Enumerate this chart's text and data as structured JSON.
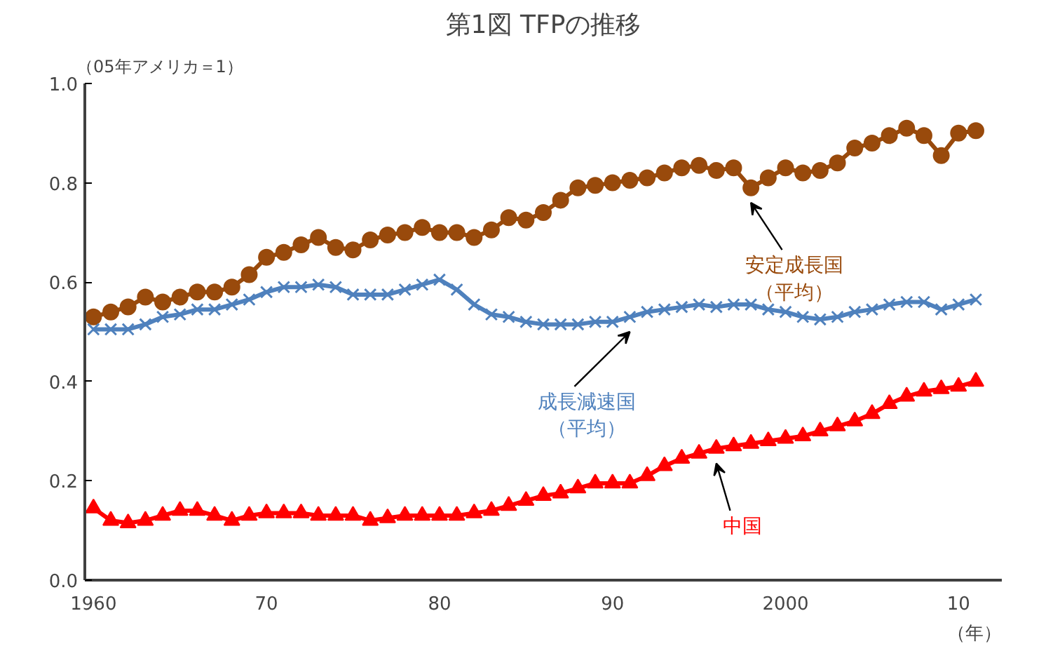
{
  "chart_data": {
    "type": "line",
    "title": "第1図 TFPの推移",
    "ylabel": "（05年アメリカ＝1）",
    "xlabel": "（年）",
    "x": [
      1960,
      1961,
      1962,
      1963,
      1964,
      1965,
      1966,
      1967,
      1968,
      1969,
      1970,
      1971,
      1972,
      1973,
      1974,
      1975,
      1976,
      1977,
      1978,
      1979,
      1980,
      1981,
      1982,
      1983,
      1984,
      1985,
      1986,
      1987,
      1988,
      1989,
      1990,
      1991,
      1992,
      1993,
      1994,
      1995,
      1996,
      1997,
      1998,
      1999,
      2000,
      2001,
      2002,
      2003,
      2004,
      2005,
      2006,
      2007,
      2008,
      2009,
      2010,
      2011
    ],
    "xlim": [
      1959.5,
      2012.5
    ],
    "xticks": [
      {
        "value": 1960,
        "label": "1960"
      },
      {
        "value": 1970,
        "label": "70"
      },
      {
        "value": 1980,
        "label": "80"
      },
      {
        "value": 1990,
        "label": "90"
      },
      {
        "value": 2000,
        "label": "2000"
      },
      {
        "value": 2010,
        "label": "10"
      }
    ],
    "ylim": [
      0,
      1.0
    ],
    "yticks": [
      {
        "value": 0,
        "label": "0.0"
      },
      {
        "value": 0.2,
        "label": "0.2"
      },
      {
        "value": 0.4,
        "label": "0.4"
      },
      {
        "value": 0.6,
        "label": "0.6"
      },
      {
        "value": 0.8,
        "label": "0.8"
      },
      {
        "value": 1.0,
        "label": "1.0"
      }
    ],
    "grid": false,
    "series": [
      {
        "name": "安定成長国（平均）",
        "color": "#994a0c",
        "marker": "circle",
        "values": [
          0.53,
          0.54,
          0.55,
          0.57,
          0.56,
          0.57,
          0.58,
          0.58,
          0.59,
          0.615,
          0.65,
          0.66,
          0.675,
          0.69,
          0.67,
          0.665,
          0.685,
          0.695,
          0.7,
          0.71,
          0.7,
          0.7,
          0.69,
          0.705,
          0.73,
          0.725,
          0.74,
          0.765,
          0.79,
          0.795,
          0.8,
          0.805,
          0.81,
          0.82,
          0.83,
          0.835,
          0.825,
          0.83,
          0.79,
          0.81,
          0.83,
          0.82,
          0.825,
          0.84,
          0.87,
          0.88,
          0.895,
          0.91,
          0.895,
          0.855,
          0.9,
          0.905
        ]
      },
      {
        "name": "成長減速国（平均）",
        "color": "#4f81bd",
        "marker": "cross",
        "values": [
          0.505,
          0.505,
          0.505,
          0.515,
          0.53,
          0.535,
          0.545,
          0.545,
          0.555,
          0.565,
          0.58,
          0.59,
          0.59,
          0.595,
          0.59,
          0.575,
          0.575,
          0.575,
          0.585,
          0.595,
          0.605,
          0.585,
          0.555,
          0.535,
          0.53,
          0.52,
          0.515,
          0.515,
          0.515,
          0.52,
          0.52,
          0.53,
          0.54,
          0.545,
          0.55,
          0.555,
          0.55,
          0.555,
          0.555,
          0.545,
          0.54,
          0.53,
          0.525,
          0.53,
          0.54,
          0.545,
          0.555,
          0.56,
          0.56,
          0.545,
          0.555,
          0.565
        ]
      },
      {
        "name": "中国",
        "color": "#ff0000",
        "marker": "triangle",
        "values": [
          0.145,
          0.12,
          0.115,
          0.12,
          0.13,
          0.14,
          0.14,
          0.13,
          0.12,
          0.13,
          0.135,
          0.135,
          0.135,
          0.13,
          0.13,
          0.13,
          0.12,
          0.125,
          0.13,
          0.13,
          0.13,
          0.13,
          0.135,
          0.14,
          0.15,
          0.16,
          0.17,
          0.175,
          0.185,
          0.195,
          0.195,
          0.195,
          0.21,
          0.23,
          0.245,
          0.255,
          0.265,
          0.27,
          0.275,
          0.28,
          0.285,
          0.29,
          0.3,
          0.31,
          0.32,
          0.335,
          0.355,
          0.37,
          0.38,
          0.385,
          0.39,
          0.4
        ]
      }
    ]
  }
}
